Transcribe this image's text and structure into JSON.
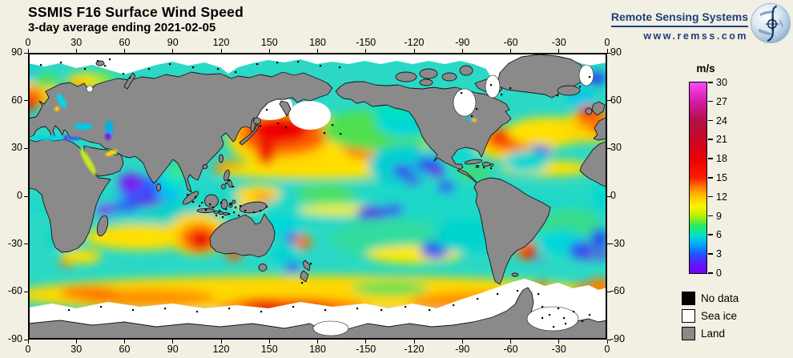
{
  "page": {
    "background": "#f2efe3"
  },
  "header": {
    "title": "SSMIS F16 Surface Wind Speed",
    "subtitle": "3-day average ending 2021-02-05"
  },
  "logo": {
    "name": "Remote Sensing Systems",
    "url": "www.remss.com",
    "color": "#1e3f7c"
  },
  "map": {
    "lon_ticks": [
      "0",
      "30",
      "60",
      "90",
      "120",
      "150",
      "180",
      "-150",
      "-120",
      "-90",
      "-60",
      "-30",
      "0"
    ],
    "lat_ticks": [
      "90",
      "60",
      "30",
      "0",
      "-30",
      "-60",
      "-90"
    ]
  },
  "colorbar": {
    "unit": "m/s",
    "min": 0,
    "max": 30,
    "ticks": [
      "30",
      "27",
      "24",
      "21",
      "18",
      "15",
      "12",
      "9",
      "6",
      "3",
      "0"
    ],
    "stops": [
      {
        "v": 0,
        "c": "#7a00f2"
      },
      {
        "v": 1.5,
        "c": "#5b1cff"
      },
      {
        "v": 3,
        "c": "#2353ff"
      },
      {
        "v": 4.5,
        "c": "#00a8fc"
      },
      {
        "v": 6,
        "c": "#00e4c8"
      },
      {
        "v": 7.5,
        "c": "#2ae95c"
      },
      {
        "v": 9,
        "c": "#b8f000"
      },
      {
        "v": 10.5,
        "c": "#fbf400"
      },
      {
        "v": 12,
        "c": "#ffc400"
      },
      {
        "v": 13.5,
        "c": "#ff7e00"
      },
      {
        "v": 15,
        "c": "#fb1e00"
      },
      {
        "v": 18,
        "c": "#e90005"
      },
      {
        "v": 21,
        "c": "#c70823"
      },
      {
        "v": 24,
        "c": "#b21048"
      },
      {
        "v": 27,
        "c": "#d619a8"
      },
      {
        "v": 30,
        "c": "#fb49f6"
      }
    ]
  },
  "legend": {
    "items": [
      {
        "label": "No data",
        "color": "#000000"
      },
      {
        "label": "Sea ice",
        "color": "#ffffff"
      },
      {
        "label": "Land",
        "color": "#8a8a8a"
      }
    ]
  }
}
